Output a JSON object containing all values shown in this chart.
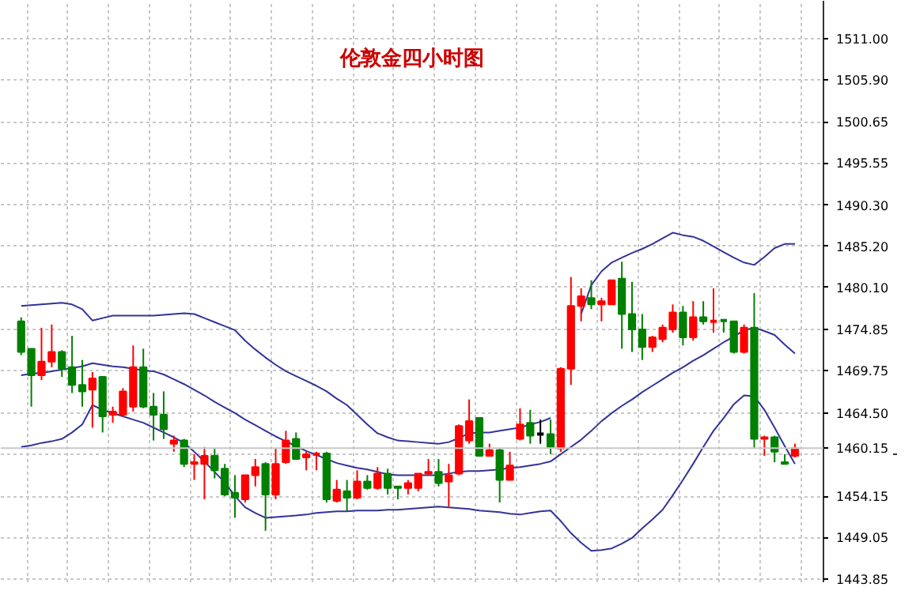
{
  "chart_data": {
    "type": "candlestick",
    "title": "伦敦金四小时图",
    "categories": [
      null,
      null,
      null,
      null,
      null,
      null,
      null,
      null,
      null,
      null,
      null,
      null,
      null,
      null,
      null,
      null,
      null,
      null,
      null,
      null,
      null,
      null,
      null,
      null,
      null,
      null,
      null,
      null,
      null,
      null,
      null,
      null,
      null,
      null,
      null,
      null,
      null,
      null,
      null,
      null,
      null,
      null,
      null,
      null,
      null,
      null,
      null,
      null,
      null,
      null,
      null,
      null,
      null,
      null,
      null,
      null,
      null,
      null,
      null,
      null,
      null,
      null,
      null,
      null,
      null,
      null,
      null,
      null,
      null,
      null,
      null,
      null,
      null,
      null,
      null,
      null,
      null
    ],
    "ohlc": [
      [
        1475.9,
        1476.4,
        1471.7,
        1472.1
      ],
      [
        1472.5,
        1472.5,
        1465.3,
        1469.2
      ],
      [
        1469.2,
        1475.1,
        1468.6,
        1470.9
      ],
      [
        1470.9,
        1475.5,
        1470.2,
        1472.1
      ],
      [
        1472.1,
        1472.3,
        1469.0,
        1470.0
      ],
      [
        1470.2,
        1474.1,
        1467.0,
        1468.0
      ],
      [
        1468.0,
        1471.1,
        1465.3,
        1467.2
      ],
      [
        1467.4,
        1469.6,
        1462.7,
        1468.8
      ],
      [
        1469.0,
        1469.0,
        1462.1,
        1464.1
      ],
      [
        1464.3,
        1465.3,
        1463.3,
        1464.7
      ],
      [
        1464.3,
        1467.6,
        1464.1,
        1467.2
      ],
      [
        1465.3,
        1472.9,
        1464.7,
        1470.2
      ],
      [
        1470.2,
        1472.5,
        1465.1,
        1465.3
      ],
      [
        1465.3,
        1467.0,
        1461.1,
        1464.3
      ],
      [
        1464.3,
        1467.2,
        1461.3,
        1462.5
      ],
      [
        1460.7,
        1461.7,
        1459.7,
        1461.1
      ],
      [
        1461.1,
        1461.3,
        1457.8,
        1458.2
      ],
      [
        1458.2,
        1459.4,
        1456.2,
        1458.4
      ],
      [
        1458.2,
        1460.3,
        1453.8,
        1459.2
      ],
      [
        1459.2,
        1460.1,
        1456.4,
        1457.4
      ],
      [
        1457.6,
        1458.2,
        1454.2,
        1454.4
      ],
      [
        1454.6,
        1456.8,
        1451.5,
        1454.0
      ],
      [
        1453.8,
        1456.8,
        1453.4,
        1456.8
      ],
      [
        1456.8,
        1458.8,
        1455.4,
        1457.8
      ],
      [
        1458.2,
        1458.4,
        1449.9,
        1454.4
      ],
      [
        1454.4,
        1460.1,
        1453.8,
        1458.2
      ],
      [
        1458.4,
        1462.3,
        1458.2,
        1461.1
      ],
      [
        1461.3,
        1462.1,
        1458.8,
        1458.8
      ],
      [
        1459.0,
        1459.7,
        1457.4,
        1459.4
      ],
      [
        1459.4,
        1459.7,
        1457.4,
        1459.5
      ],
      [
        1459.5,
        1459.7,
        1453.4,
        1453.8
      ],
      [
        1453.6,
        1456.2,
        1453.4,
        1455.0
      ],
      [
        1454.8,
        1456.2,
        1452.3,
        1454.0
      ],
      [
        1454.0,
        1457.4,
        1453.8,
        1456.0
      ],
      [
        1456.0,
        1456.8,
        1455.0,
        1455.2
      ],
      [
        1455.2,
        1457.8,
        1455.0,
        1457.0
      ],
      [
        1457.0,
        1457.6,
        1454.4,
        1455.2
      ],
      [
        1455.4,
        1455.4,
        1453.8,
        1455.2
      ],
      [
        1455.2,
        1456.2,
        1454.4,
        1455.8
      ],
      [
        1455.2,
        1457.0,
        1454.8,
        1457.0
      ],
      [
        1457.0,
        1458.8,
        1456.8,
        1457.2
      ],
      [
        1457.2,
        1458.8,
        1455.4,
        1455.8
      ],
      [
        1456.0,
        1458.2,
        1452.9,
        1456.8
      ],
      [
        1457.0,
        1463.1,
        1456.8,
        1462.9
      ],
      [
        1461.1,
        1466.2,
        1460.7,
        1463.5
      ],
      [
        1463.9,
        1463.9,
        1459.2,
        1459.2
      ],
      [
        1459.2,
        1460.7,
        1459.2,
        1459.9
      ],
      [
        1459.9,
        1460.1,
        1453.4,
        1456.2
      ],
      [
        1456.2,
        1459.7,
        1456.2,
        1458.0
      ],
      [
        1461.3,
        1465.1,
        1461.1,
        1463.1
      ],
      [
        1463.3,
        1464.9,
        1460.7,
        1461.7
      ],
      [
        1461.9,
        1463.7,
        1460.7,
        1461.9
      ],
      [
        1461.9,
        1463.7,
        1459.4,
        1460.3
      ],
      [
        1460.1,
        1470.2,
        1459.7,
        1470.0
      ],
      [
        1470.0,
        1481.4,
        1468.0,
        1477.8
      ],
      [
        1477.8,
        1480.0,
        1475.9,
        1479.0
      ],
      [
        1478.8,
        1481.0,
        1477.4,
        1478.0
      ],
      [
        1478.0,
        1478.8,
        1475.9,
        1478.4
      ],
      [
        1478.0,
        1481.0,
        1478.0,
        1481.0
      ],
      [
        1481.2,
        1483.3,
        1472.5,
        1476.8
      ],
      [
        1476.8,
        1480.8,
        1472.1,
        1474.9
      ],
      [
        1474.9,
        1476.8,
        1471.1,
        1472.7
      ],
      [
        1472.7,
        1474.1,
        1472.1,
        1473.9
      ],
      [
        1473.7,
        1475.5,
        1473.3,
        1475.1
      ],
      [
        1474.9,
        1478.0,
        1474.5,
        1477.0
      ],
      [
        1477.0,
        1477.8,
        1472.9,
        1473.9
      ],
      [
        1473.9,
        1478.4,
        1473.5,
        1476.4
      ],
      [
        1476.4,
        1478.4,
        1475.5,
        1475.9
      ],
      [
        1475.9,
        1480.0,
        1474.5,
        1476.0
      ],
      [
        1476.0,
        1476.0,
        1474.5,
        1475.9
      ],
      [
        1475.9,
        1475.9,
        1471.9,
        1472.1
      ],
      [
        1472.1,
        1475.5,
        1471.9,
        1475.1
      ],
      [
        1475.1,
        1479.4,
        1460.1,
        1461.3
      ],
      [
        1461.3,
        1461.7,
        1459.2,
        1461.5
      ],
      [
        1461.5,
        1461.7,
        1458.4,
        1459.7
      ],
      [
        1458.4,
        1459.4,
        1458.2,
        1458.2
      ],
      [
        1459.2,
        1460.7,
        1459.0,
        1460.15
      ]
    ],
    "colors": [
      "#008000",
      "#008000",
      "#ff0000",
      "#ff0000",
      "#008000",
      "#008000",
      "#008000",
      "#ff0000",
      "#008000",
      "#ff0000",
      "#ff0000",
      "#ff0000",
      "#008000",
      "#008000",
      "#008000",
      "#ff0000",
      "#008000",
      "#ff0000",
      "#ff0000",
      "#008000",
      "#008000",
      "#008000",
      "#ff0000",
      "#ff0000",
      "#008000",
      "#ff0000",
      "#ff0000",
      "#008000",
      "#ff0000",
      "#ff0000",
      "#008000",
      "#ff0000",
      "#008000",
      "#ff0000",
      "#008000",
      "#ff0000",
      "#008000",
      "#008000",
      "#ff0000",
      "#ff0000",
      "#ff0000",
      "#008000",
      "#ff0000",
      "#ff0000",
      "#ff0000",
      "#008000",
      "#ff0000",
      "#008000",
      "#ff0000",
      "#ff0000",
      "#008000",
      "#000000",
      "#008000",
      "#ff0000",
      "#ff0000",
      "#ff0000",
      "#008000",
      "#ff0000",
      "#ff0000",
      "#008000",
      "#008000",
      "#008000",
      "#ff0000",
      "#ff0000",
      "#ff0000",
      "#008000",
      "#ff0000",
      "#008000",
      "#ff0000",
      "#008000",
      "#008000",
      "#ff0000",
      "#008000",
      "#ff0000",
      "#008000",
      "#008000",
      "#ff0000"
    ],
    "series": [
      {
        "type": "line",
        "color": "#333399",
        "values": [
          1477.8,
          1477.9,
          1478.0,
          1478.1,
          1478.2,
          1478.0,
          1477.4,
          1476.0,
          1476.3,
          1476.6,
          1476.6,
          1476.6,
          1476.6,
          1476.6,
          1476.7,
          1476.8,
          1476.9,
          1476.8,
          1476.3,
          1475.8,
          1475.3,
          1474.8,
          1473.5,
          1472.4,
          1471.4,
          1470.5,
          1469.7,
          1469.1,
          1468.5,
          1467.9,
          1467.2,
          1466.3,
          1465.5,
          1464.3,
          1463.1,
          1462.0,
          1461.5,
          1461.1,
          1461.0,
          1460.9,
          1460.8,
          1460.7,
          1460.9,
          1461.4,
          1462.0,
          1462.1,
          1462.1,
          1462.3,
          1462.5,
          1462.7,
          1463.1,
          1463.4,
          1463.9,
          null,
          null,
          1476.8,
          1480.4,
          1482.1,
          1483.2,
          1483.8,
          1484.4,
          1484.9,
          1485.5,
          1486.2,
          1486.9,
          1486.6,
          1486.4,
          1485.9,
          1485.2,
          1484.5,
          1483.8,
          1483.2,
          1482.9,
          1483.9,
          1485.0,
          1485.5,
          1485.5
        ]
      },
      {
        "type": "line",
        "color": "#333399",
        "values": [
          1469.2,
          1469.4,
          1469.5,
          1469.7,
          1469.9,
          1470.1,
          1470.3,
          1470.7,
          1470.5,
          1470.3,
          1470.2,
          1470.0,
          1469.8,
          1469.7,
          1469.3,
          1468.7,
          1468.1,
          1467.4,
          1466.7,
          1465.9,
          1465.2,
          1464.5,
          1463.7,
          1463.0,
          1462.3,
          1461.6,
          1461.0,
          1460.4,
          1459.8,
          1459.3,
          1458.8,
          1458.3,
          1458.0,
          1457.7,
          1457.5,
          1457.2,
          1456.9,
          1456.8,
          1456.8,
          1456.8,
          1456.8,
          1456.8,
          1457.0,
          1457.2,
          1457.3,
          1457.3,
          1457.4,
          1457.5,
          1457.7,
          1457.8,
          1458.0,
          1458.2,
          1458.5,
          1459.4,
          1460.3,
          1461.2,
          1462.3,
          1463.5,
          1464.5,
          1465.4,
          1466.2,
          1467.1,
          1467.9,
          1468.7,
          1469.5,
          1470.2,
          1471.0,
          1471.7,
          1472.5,
          1473.3,
          1474.0,
          1474.8,
          1475.1,
          1474.7,
          1474.2,
          1473.0,
          1471.9
        ]
      },
      {
        "type": "line",
        "color": "#333399",
        "values": [
          1460.3,
          1460.5,
          1460.8,
          1461.0,
          1461.3,
          1462.1,
          1463.1,
          1465.5,
          1464.9,
          1464.5,
          1464.1,
          1463.7,
          1463.3,
          1462.7,
          1462.1,
          1461.5,
          1460.8,
          1459.7,
          1458.5,
          1457.2,
          1455.9,
          1454.2,
          1452.8,
          1452.1,
          1451.5,
          1451.6,
          1451.7,
          1451.8,
          1451.9,
          1452.1,
          1452.2,
          1452.3,
          1452.3,
          1452.4,
          1452.4,
          1452.4,
          1452.5,
          1452.5,
          1452.6,
          1452.7,
          1452.8,
          1452.9,
          1452.8,
          1452.7,
          1452.6,
          1452.4,
          1452.3,
          1452.2,
          1452.0,
          1451.9,
          1452.1,
          1452.3,
          1452.4,
          1451.1,
          1449.6,
          1448.4,
          1447.4,
          1447.5,
          1447.7,
          1448.3,
          1449.0,
          1450.2,
          1451.3,
          1452.5,
          1454.3,
          1456.2,
          1458.2,
          1460.3,
          1462.3,
          1463.9,
          1465.6,
          1466.7,
          1466.6,
          1464.9,
          1462.7,
          1460.4,
          1458.2
        ]
      }
    ],
    "ylim": [
      1443.5,
      1515.7
    ],
    "yticks": [
      {
        "value": 1511.0,
        "label": "1511.00"
      },
      {
        "value": 1505.9,
        "label": "1505.90"
      },
      {
        "value": 1500.65,
        "label": "1500.65"
      },
      {
        "value": 1495.55,
        "label": "1495.55"
      },
      {
        "value": 1490.3,
        "label": "1490.30"
      },
      {
        "value": 1485.2,
        "label": "1485.20"
      },
      {
        "value": 1480.1,
        "label": "1480.10"
      },
      {
        "value": 1474.85,
        "label": "1474.85"
      },
      {
        "value": 1469.75,
        "label": "1469.75"
      },
      {
        "value": 1464.5,
        "label": "1464.50"
      },
      {
        "value": 1459.4,
        "label": null
      },
      {
        "value": 1454.15,
        "label": "1454.15"
      },
      {
        "value": 1449.05,
        "label": "1449.05"
      },
      {
        "value": 1443.85,
        "label": "1443.85"
      }
    ],
    "grid": true,
    "tick_labels": "y",
    "ref_lines": [
      {
        "axis": "y",
        "value": 1460.15,
        "label": "1460.15",
        "color": "#c8c8c8"
      }
    ]
  }
}
